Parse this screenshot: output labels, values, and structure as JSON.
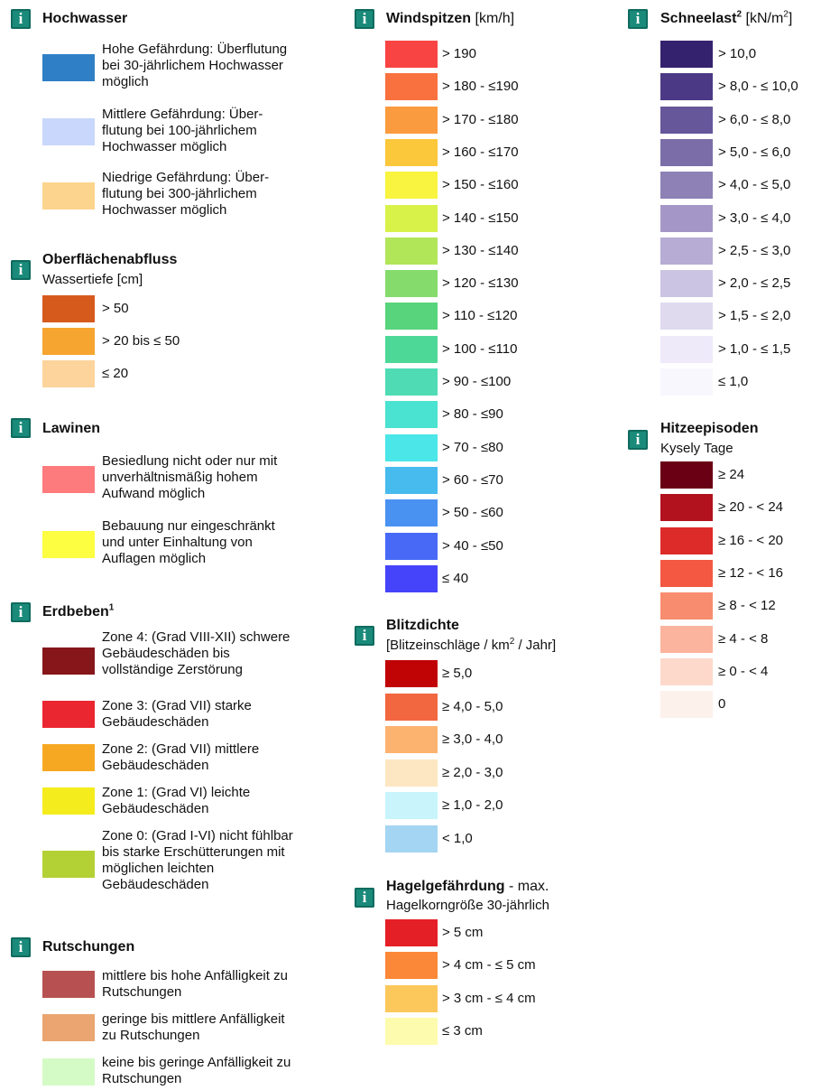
{
  "hochwasser": {
    "title": "Hochwasser",
    "icon": "info-icon",
    "items": [
      {
        "color": "#2f7fc6",
        "lines": [
          "Hohe Gefährdung: Überflutung",
          "bei 30-jährlichem Hochwasser",
          "möglich"
        ]
      },
      {
        "color": "#c8d7fb",
        "lines": [
          "Mittlere Gefährdung: Über-",
          "flutung bei 100-jährlichem",
          "Hochwasser möglich"
        ]
      },
      {
        "color": "#fcd48e",
        "lines": [
          "Niedrige Gefährdung: Über-",
          "flutung bei 300-jährlichem",
          "Hochwasser möglich"
        ]
      }
    ]
  },
  "oberflaechenabfluss": {
    "title": "Oberflächenabfluss",
    "subtitle": "Wassertiefe [cm]",
    "icon": "info-icon",
    "items": [
      {
        "color": "#d65a1c",
        "label": "> 50"
      },
      {
        "color": "#f6a530",
        "label": "> 20 bis ≤ 50"
      },
      {
        "color": "#fcd49c",
        "label": "≤ 20"
      }
    ]
  },
  "lawinen": {
    "title": "Lawinen",
    "icon": "info-icon",
    "items": [
      {
        "color": "#fd7b7d",
        "lines": [
          "Besiedlung nicht oder nur mit",
          "unverhältnismäßig hohem",
          "Aufwand möglich"
        ]
      },
      {
        "color": "#fdfd41",
        "lines": [
          "Bebauung nur eingeschränkt",
          "und unter Einhaltung von",
          "Auflagen möglich"
        ]
      }
    ]
  },
  "erdbeben": {
    "title": "Erdbeben",
    "sup": "1",
    "icon": "info-icon",
    "items": [
      {
        "color": "#86161a",
        "lines": [
          "Zone 4: (Grad VIII-XII) schwere",
          "Gebäudeschäden bis",
          "vollständige Zerstörung"
        ]
      },
      {
        "color": "#ea2630",
        "lines": [
          "Zone 3: (Grad VII) starke",
          "Gebäudeschäden"
        ]
      },
      {
        "color": "#f7a823",
        "lines": [
          "Zone 2: (Grad VII) mittlere",
          "Gebäudeschäden"
        ]
      },
      {
        "color": "#f5ec1d",
        "lines": [
          "Zone 1: (Grad VI) leichte",
          "Gebäudeschäden"
        ]
      },
      {
        "color": "#b3d135",
        "lines": [
          "Zone 0: (Grad I-VI) nicht fühlbar",
          "bis starke Erschütterungen mit",
          "möglichen leichten",
          "Gebäudeschäden"
        ]
      }
    ]
  },
  "rutschungen": {
    "title": "Rutschungen",
    "icon": "info-icon",
    "items": [
      {
        "color": "#b75151",
        "lines": [
          "mittlere bis hohe Anfälligkeit zu",
          "Rutschungen"
        ]
      },
      {
        "color": "#eaa570",
        "lines": [
          "geringe bis mittlere Anfälligkeit",
          "zu Rutschungen"
        ]
      },
      {
        "color": "#d4fbc5",
        "lines": [
          "keine bis geringe Anfälligkeit zu",
          "Rutschungen"
        ]
      }
    ]
  },
  "windspitzen": {
    "title": "Windspitzen",
    "unit": "[km/h]",
    "icon": "info-icon",
    "items": [
      {
        "color": "#f94444",
        "label": "> 190"
      },
      {
        "color": "#f9713f",
        "label": "> 180 - ≤190"
      },
      {
        "color": "#fb9b3f",
        "label": "> 170 - ≤180"
      },
      {
        "color": "#fbc73b",
        "label": "> 160 - ≤170"
      },
      {
        "color": "#f8f43f",
        "label": "> 150 - ≤160"
      },
      {
        "color": "#d8f24a",
        "label": "> 140 - ≤150"
      },
      {
        "color": "#b1e658",
        "label": "> 130 - ≤140"
      },
      {
        "color": "#85dc6c",
        "label": "> 120 - ≤130"
      },
      {
        "color": "#58d47c",
        "label": "> 110 - ≤120"
      },
      {
        "color": "#4ed898",
        "label": "> 100 - ≤110"
      },
      {
        "color": "#4fdcb4",
        "label": "> 90 - ≤100"
      },
      {
        "color": "#4ae2d0",
        "label": "> 80 - ≤90"
      },
      {
        "color": "#4ae6e8",
        "label": "> 70 - ≤80"
      },
      {
        "color": "#47bbee",
        "label": "> 60 - ≤70"
      },
      {
        "color": "#4a92f2",
        "label": "> 50 - ≤60"
      },
      {
        "color": "#4769f6",
        "label": "> 40 - ≤50"
      },
      {
        "color": "#4544fa",
        "label": "≤ 40"
      }
    ]
  },
  "blitzdichte": {
    "title": "Blitzdichte",
    "subtitle_pre": "[Blitzeinschläge / km",
    "subtitle_sup": "2",
    "subtitle_post": " / Jahr]",
    "icon": "info-icon",
    "items": [
      {
        "color": "#c00406",
        "label": "≥ 5,0"
      },
      {
        "color": "#f2673f",
        "label": "≥ 4,0 - 5,0"
      },
      {
        "color": "#fcb370",
        "label": "≥ 3,0 - 4,0"
      },
      {
        "color": "#fde6c2",
        "label": "≥ 2,0 - 3,0"
      },
      {
        "color": "#c9f4fb",
        "label": "≥ 1,0 - 2,0"
      },
      {
        "color": "#a4d5f2",
        "label": "< 1,0"
      }
    ]
  },
  "hagel": {
    "title": "Hagelgefährdung",
    "title_rest": " - max.",
    "subtitle": "Hagelkorngröße 30-jährlich",
    "icon": "info-icon",
    "items": [
      {
        "color": "#e51f26",
        "label": "> 5 cm"
      },
      {
        "color": "#fb8838",
        "label": "> 4 cm - ≤ 5 cm"
      },
      {
        "color": "#fdc85b",
        "label": "> 3 cm - ≤ 4 cm"
      },
      {
        "color": "#fdfbae",
        "label": "≤ 3 cm"
      }
    ]
  },
  "schneelast": {
    "title": "Schneelast",
    "sup": "2",
    "unit_pre": " [kN/m",
    "unit_sup": "2",
    "unit_post": "]",
    "icon": "info-icon",
    "items": [
      {
        "color": "#35226e",
        "label": "> 10,0"
      },
      {
        "color": "#4c3986",
        "label": "> 8,0 - ≤ 10,0"
      },
      {
        "color": "#66569a",
        "label": "> 6,0 - ≤ 8,0"
      },
      {
        "color": "#7b6ea8",
        "label": "> 5,0 - ≤ 6,0"
      },
      {
        "color": "#8d81b6",
        "label": "> 4,0 - ≤ 5,0"
      },
      {
        "color": "#a497c7",
        "label": "> 3,0 - ≤ 4,0"
      },
      {
        "color": "#b7acd4",
        "label": "> 2,5 - ≤ 3,0"
      },
      {
        "color": "#cbc4e2",
        "label": "> 2,0 - ≤ 2,5"
      },
      {
        "color": "#dfdaee",
        "label": "> 1,5 - ≤ 2,0"
      },
      {
        "color": "#eeeafa",
        "label": "> 1,0 - ≤ 1,5"
      },
      {
        "color": "#f8f7fd",
        "label": "≤ 1,0"
      }
    ]
  },
  "hitzeepisoden": {
    "title": "Hitzeepisoden",
    "subtitle": "Kysely Tage",
    "icon": "info-icon",
    "items": [
      {
        "color": "#6a0014",
        "label": "≥ 24"
      },
      {
        "color": "#b1121e",
        "label": "≥ 20 - < 24"
      },
      {
        "color": "#dd2b2a",
        "label": "≥ 16 - < 20"
      },
      {
        "color": "#f45842",
        "label": "≥ 12 - < 16"
      },
      {
        "color": "#f88c6e",
        "label": "≥ 8 - < 12"
      },
      {
        "color": "#fbb49d",
        "label": "≥ 4 - < 8"
      },
      {
        "color": "#fdd9cc",
        "label": "≥ 0 - < 4"
      },
      {
        "color": "#fdf1ec",
        "label": "0"
      }
    ]
  }
}
